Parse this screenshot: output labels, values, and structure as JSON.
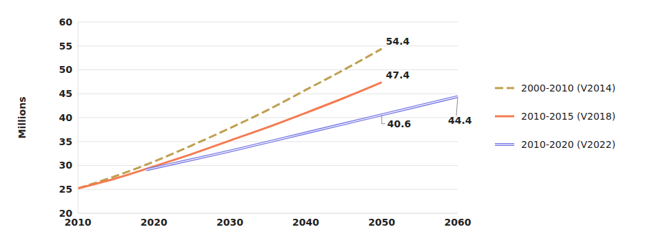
{
  "chart_data": {
    "type": "line",
    "y_label": "Millions",
    "xlim": [
      2010,
      2060
    ],
    "xticks": [
      2010,
      2020,
      2030,
      2040,
      2050,
      2060
    ],
    "ylim": [
      20,
      60
    ],
    "yticks": [
      20,
      25,
      30,
      35,
      40,
      45,
      50,
      55,
      60
    ],
    "grid": true,
    "legend": "right",
    "series": [
      {
        "name": "2000-2010 (V2014)",
        "color": "#bf9f4f",
        "line_style": "dashed",
        "x": [
          2010,
          2015,
          2020,
          2025,
          2030,
          2035,
          2040,
          2045,
          2050
        ],
        "values": [
          25.2,
          27.8,
          30.8,
          34.2,
          37.8,
          41.6,
          45.8,
          50.0,
          54.4
        ]
      },
      {
        "name": "2010-2015 (V2018)",
        "color": "#f47b50",
        "line_style": "solid",
        "x": [
          2010,
          2015,
          2020,
          2025,
          2030,
          2035,
          2040,
          2045,
          2050
        ],
        "values": [
          25.2,
          27.3,
          29.8,
          32.4,
          35.2,
          38.0,
          41.0,
          44.1,
          47.4
        ]
      },
      {
        "name": "2010-2020 (V2022)",
        "color": "#7a7ae6",
        "line_style": "double",
        "x": [
          2019,
          2030,
          2040,
          2050,
          2060
        ],
        "values": [
          29.1,
          33.0,
          36.8,
          40.6,
          44.4
        ]
      }
    ],
    "annotations": [
      {
        "text": "54.4",
        "x": 2050,
        "y": 54.4
      },
      {
        "text": "47.4",
        "x": 2050,
        "y": 47.4
      },
      {
        "text": "40.6",
        "x": 2050,
        "y": 40.6
      },
      {
        "text": "44.4",
        "x": 2060,
        "y": 44.4
      }
    ]
  }
}
